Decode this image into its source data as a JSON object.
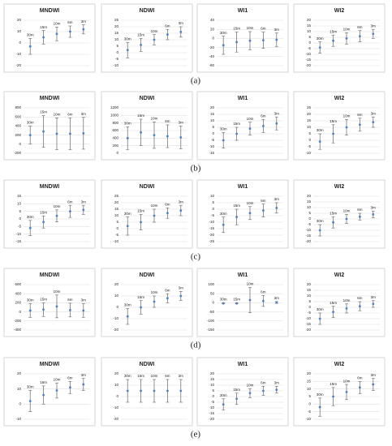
{
  "chart_data": [
    {
      "type": "errorbar",
      "title": "MNDWI",
      "categories": [
        "30m",
        "15m",
        "10m",
        "6m",
        "3m"
      ],
      "values": [
        -3,
        5,
        8,
        10,
        12
      ],
      "errors": [
        7,
        6,
        6,
        5,
        4
      ],
      "ylim": [
        -20,
        20
      ],
      "yticks": [
        -20,
        -10,
        0,
        10,
        20
      ],
      "grid": true,
      "color": "#4f81bd",
      "error_color": "#666666"
    },
    {
      "type": "errorbar",
      "title": "NDWI",
      "categories": [
        "30m",
        "15m",
        "10m",
        "6m",
        "3m"
      ],
      "values": [
        2,
        6,
        10,
        14,
        16
      ],
      "errors": [
        6,
        5,
        4,
        4,
        4
      ],
      "ylim": [
        -10,
        25
      ],
      "yticks": [
        -10,
        -5,
        0,
        5,
        10,
        15,
        20,
        25
      ],
      "grid": true,
      "color": "#4f81bd",
      "error_color": "#666666"
    },
    {
      "type": "errorbar",
      "title": "WI1",
      "categories": [
        "30m",
        "15m",
        "10m",
        "6m",
        "3m"
      ],
      "values": [
        -15,
        -8,
        -5,
        -4,
        -3
      ],
      "errors": [
        20,
        22,
        20,
        18,
        15
      ],
      "ylim": [
        -60,
        40
      ],
      "yticks": [
        -60,
        -40,
        -20,
        0,
        20,
        40
      ],
      "grid": true,
      "color": "#4f81bd",
      "error_color": "#666666"
    },
    {
      "type": "errorbar",
      "title": "WI2",
      "categories": [
        "30m",
        "15m",
        "10m",
        "6m",
        "3m"
      ],
      "values": [
        -4,
        2,
        4,
        6,
        8
      ],
      "errors": [
        5,
        5,
        5,
        5,
        4
      ],
      "ylim": [
        -20,
        20
      ],
      "yticks": [
        -20,
        -15,
        -10,
        -5,
        0,
        5,
        10,
        15,
        20
      ],
      "grid": true,
      "color": "#4f81bd",
      "error_color": "#666666"
    },
    {
      "type": "errorbar",
      "title": "MNDWI",
      "categories": [
        "30m",
        "15m",
        "10m",
        "6m",
        "3m"
      ],
      "values": [
        200,
        280,
        230,
        230,
        240
      ],
      "errors": [
        200,
        350,
        350,
        350,
        350
      ],
      "ylim": [
        -200,
        800
      ],
      "yticks": [
        -200,
        0,
        200,
        400,
        600,
        800
      ],
      "grid": true,
      "color": "#4f81bd",
      "error_color": "#666666"
    },
    {
      "type": "errorbar",
      "title": "NDWI",
      "categories": [
        "30m",
        "15m",
        "10m",
        "6m",
        "3m"
      ],
      "values": [
        400,
        550,
        480,
        450,
        420
      ],
      "errors": [
        300,
        350,
        350,
        300,
        300
      ],
      "ylim": [
        0,
        1200
      ],
      "yticks": [
        0,
        200,
        400,
        600,
        800,
        1000,
        1200
      ],
      "grid": true,
      "color": "#4f81bd",
      "error_color": "#666666"
    },
    {
      "type": "errorbar",
      "title": "WI1",
      "categories": [
        "30m",
        "15m",
        "10m",
        "6m",
        "3m"
      ],
      "values": [
        -5,
        0,
        4,
        6,
        8
      ],
      "errors": [
        6,
        5,
        5,
        5,
        5
      ],
      "ylim": [
        -15,
        20
      ],
      "yticks": [
        -15,
        -10,
        -5,
        0,
        5,
        10,
        15,
        20
      ],
      "grid": true,
      "color": "#4f81bd",
      "error_color": "#666666"
    },
    {
      "type": "errorbar",
      "title": "WI2",
      "categories": [
        "30m",
        "15m",
        "10m",
        "6m",
        "3m"
      ],
      "values": [
        -1,
        5,
        10,
        12,
        14
      ],
      "errors": [
        6,
        7,
        6,
        5,
        4
      ],
      "ylim": [
        -10,
        25
      ],
      "yticks": [
        -10,
        -5,
        0,
        5,
        10,
        15,
        20,
        25
      ],
      "grid": true,
      "color": "#4f81bd",
      "error_color": "#666666"
    },
    {
      "type": "errorbar",
      "title": "MNDWI",
      "categories": [
        "30m",
        "15m",
        "10m",
        "6m",
        "3m"
      ],
      "values": [
        -6,
        -2,
        2,
        5,
        6
      ],
      "errors": [
        5,
        4,
        4,
        4,
        3
      ],
      "ylim": [
        -15,
        15
      ],
      "yticks": [
        -15,
        -10,
        -5,
        0,
        5,
        10,
        15
      ],
      "grid": true,
      "color": "#4f81bd",
      "error_color": "#666666"
    },
    {
      "type": "errorbar",
      "title": "NDWI",
      "categories": [
        "30m",
        "15m",
        "10m",
        "6m",
        "3m"
      ],
      "values": [
        2,
        5,
        10,
        12,
        14
      ],
      "errors": [
        7,
        6,
        5,
        4,
        4
      ],
      "ylim": [
        -10,
        25
      ],
      "yticks": [
        -10,
        -5,
        0,
        5,
        10,
        15,
        20,
        25
      ],
      "grid": true,
      "color": "#4f81bd",
      "error_color": "#666666"
    },
    {
      "type": "errorbar",
      "title": "WI1",
      "categories": [
        "30m",
        "15m",
        "10m",
        "6m",
        "3m"
      ],
      "values": [
        -12,
        -6,
        -3,
        -1,
        1
      ],
      "errors": [
        6,
        6,
        5,
        5,
        4
      ],
      "ylim": [
        -25,
        10
      ],
      "yticks": [
        -25,
        -20,
        -15,
        -10,
        -5,
        0,
        5,
        10
      ],
      "grid": true,
      "color": "#4f81bd",
      "error_color": "#666666"
    },
    {
      "type": "errorbar",
      "title": "WI2",
      "categories": [
        "30m",
        "15m",
        "10m",
        "6m",
        "3m"
      ],
      "values": [
        -10,
        -3,
        0,
        2,
        4
      ],
      "errors": [
        5,
        5,
        4,
        3,
        3
      ],
      "ylim": [
        -20,
        20
      ],
      "yticks": [
        -20,
        -15,
        -10,
        -5,
        0,
        5,
        10,
        15,
        20
      ],
      "grid": true,
      "color": "#4f81bd",
      "error_color": "#666666"
    },
    {
      "type": "errorbar",
      "title": "MNDWI",
      "categories": [
        "30m",
        "15m",
        "10m",
        "6m",
        "3m"
      ],
      "values": [
        30,
        50,
        120,
        40,
        30
      ],
      "errors": [
        150,
        150,
        250,
        150,
        150
      ],
      "ylim": [
        -400,
        600
      ],
      "yticks": [
        -400,
        -200,
        0,
        200,
        400,
        600
      ],
      "grid": true,
      "color": "#4f81bd",
      "error_color": "#666666"
    },
    {
      "type": "errorbar",
      "title": "NDWI",
      "categories": [
        "30m",
        "15m",
        "10m",
        "6m",
        "3m"
      ],
      "values": [
        -8,
        0,
        5,
        8,
        10
      ],
      "errors": [
        7,
        6,
        5,
        4,
        4
      ],
      "ylim": [
        -20,
        20
      ],
      "yticks": [
        -20,
        -10,
        0,
        10,
        20
      ],
      "grid": true,
      "color": "#4f81bd",
      "error_color": "#666666"
    },
    {
      "type": "errorbar",
      "title": "WI1",
      "categories": [
        "30m",
        "15m",
        "10m",
        "6m",
        "3m"
      ],
      "values": [
        -3,
        -3,
        15,
        10,
        2
      ],
      "errors": [
        3,
        3,
        70,
        30,
        5
      ],
      "ylim": [
        -150,
        100
      ],
      "yticks": [
        -150,
        -100,
        -50,
        0,
        50,
        100
      ],
      "grid": true,
      "color": "#4f81bd",
      "error_color": "#666666"
    },
    {
      "type": "errorbar",
      "title": "WI2",
      "categories": [
        "30m",
        "15m",
        "10m",
        "6m",
        "3m"
      ],
      "values": [
        -10,
        -4,
        -1,
        1,
        3
      ],
      "errors": [
        5,
        5,
        4,
        4,
        3
      ],
      "ylim": [
        -20,
        20
      ],
      "yticks": [
        -20,
        -15,
        -10,
        -5,
        0,
        5,
        10,
        15,
        20
      ],
      "grid": true,
      "color": "#4f81bd",
      "error_color": "#666666"
    },
    {
      "type": "errorbar",
      "title": "MNDWI",
      "categories": [
        "30m",
        "15m",
        "10m",
        "6m",
        "3m"
      ],
      "values": [
        2,
        6,
        9,
        11,
        13
      ],
      "errors": [
        7,
        6,
        5,
        4,
        4
      ],
      "ylim": [
        -10,
        20
      ],
      "yticks": [
        -10,
        0,
        10,
        20
      ],
      "grid": true,
      "color": "#4f81bd",
      "error_color": "#666666"
    },
    {
      "type": "errorbar",
      "title": "NDWI",
      "categories": [
        "30m",
        "15m",
        "10m",
        "6m",
        "3m"
      ],
      "values": [
        5,
        5,
        5,
        5,
        5
      ],
      "errors": [
        10,
        10,
        10,
        10,
        10
      ],
      "ylim": [
        -20,
        20
      ],
      "yticks": [
        -20,
        -10,
        0,
        10,
        20
      ],
      "grid": true,
      "color": "#4f81bd",
      "error_color": "#666666"
    },
    {
      "type": "errorbar",
      "title": "WI1",
      "categories": [
        "30m",
        "15m",
        "10m",
        "6m",
        "3m"
      ],
      "values": [
        -7,
        -2,
        3,
        5,
        6
      ],
      "errors": [
        5,
        5,
        4,
        4,
        3
      ],
      "ylim": [
        -20,
        20
      ],
      "yticks": [
        -20,
        -15,
        -10,
        -5,
        0,
        5,
        10,
        15,
        20
      ],
      "grid": true,
      "color": "#4f81bd",
      "error_color": "#666666"
    },
    {
      "type": "errorbar",
      "title": "WI2",
      "categories": [
        "30m",
        "15m",
        "10m",
        "6m",
        "3m"
      ],
      "values": [
        -2,
        5,
        8,
        11,
        13
      ],
      "errors": [
        6,
        6,
        5,
        4,
        4
      ],
      "ylim": [
        -10,
        20
      ],
      "yticks": [
        -10,
        -5,
        0,
        5,
        10,
        15,
        20
      ],
      "grid": true,
      "color": "#4f81bd",
      "error_color": "#666666"
    }
  ],
  "captions": [
    "(a)",
    "(b)",
    "(c)",
    "(d)",
    "(e)"
  ]
}
